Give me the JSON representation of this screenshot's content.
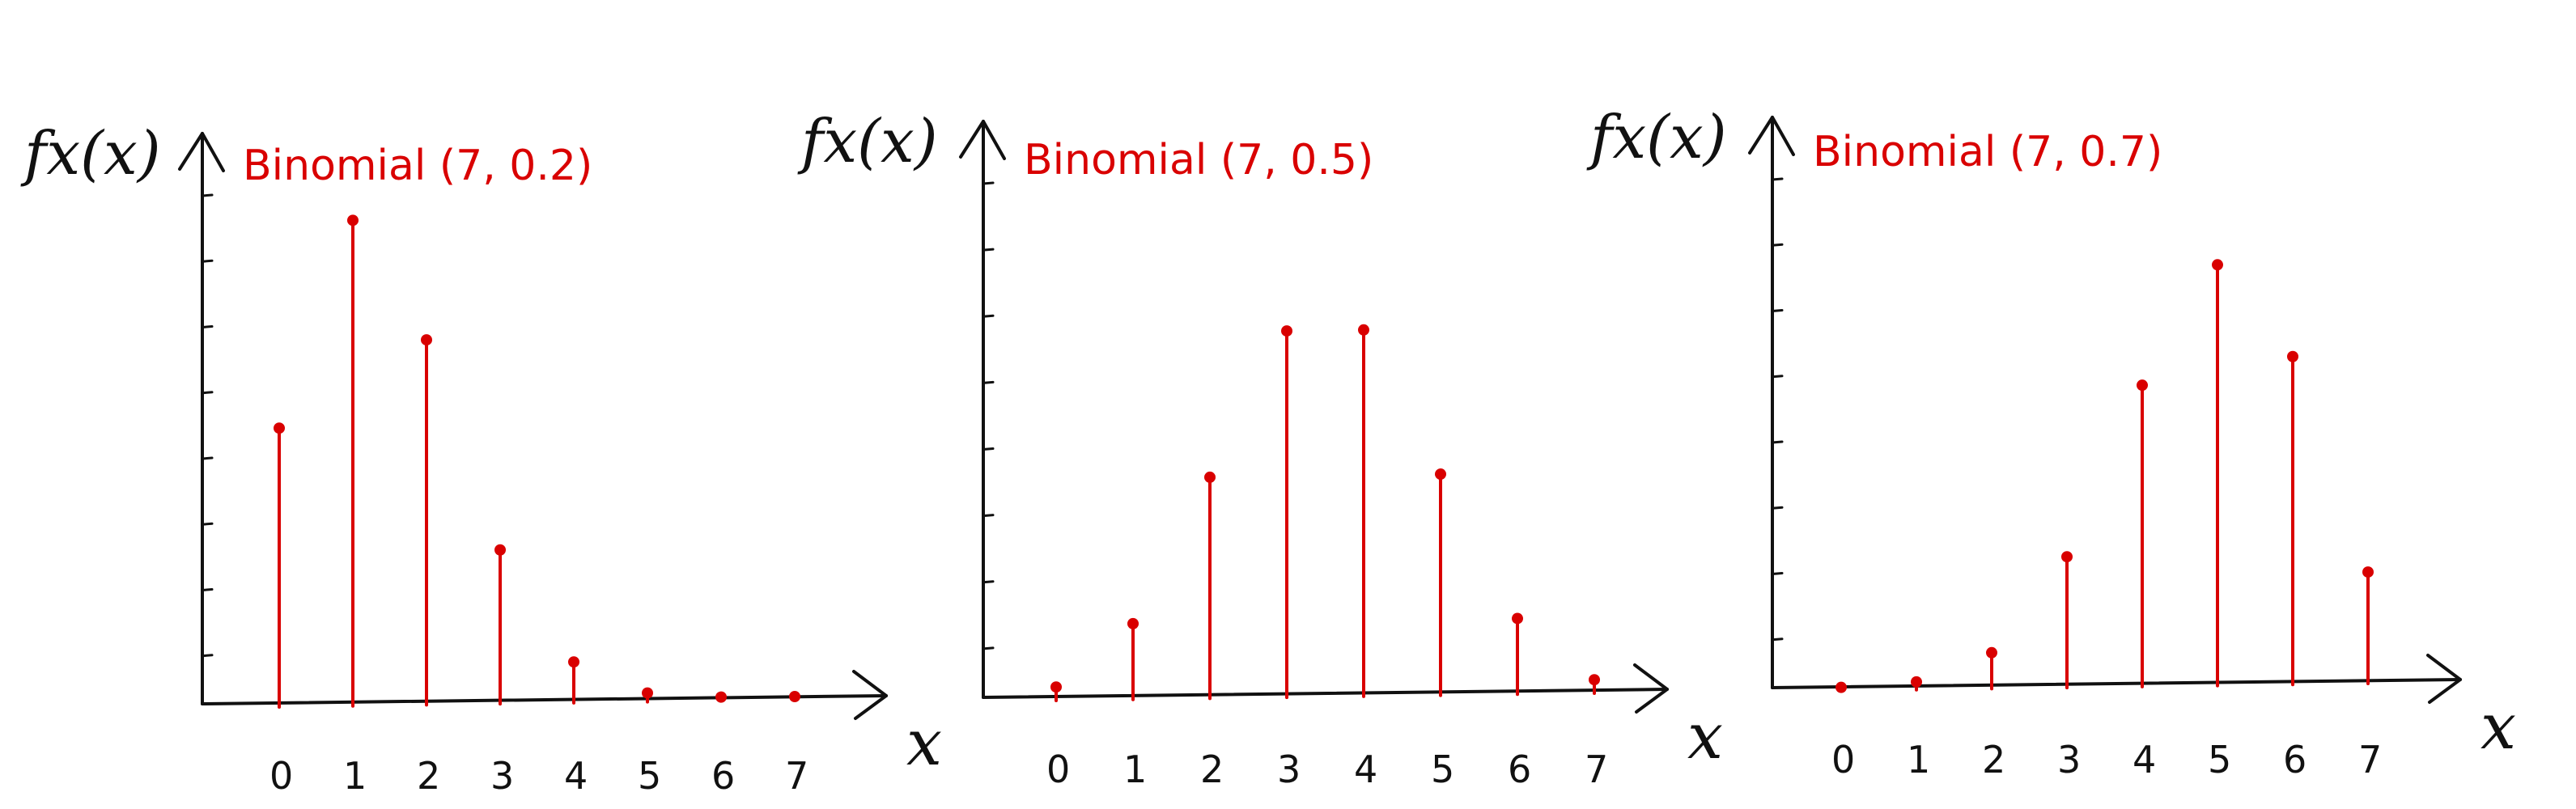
{
  "colors": {
    "stem": "#d90000",
    "axis": "#111111",
    "title": "#d90000"
  },
  "chart_data": [
    {
      "type": "stem",
      "title": "Binomial (7, 0.2)",
      "ylabel": "fx(x)",
      "xlabel": "x",
      "x": [
        0,
        1,
        2,
        3,
        4,
        5,
        6,
        7
      ],
      "x_tick_labels": [
        "0",
        "1",
        "2",
        "3",
        "4",
        "5",
        "6",
        "7"
      ],
      "values": [
        0.2097,
        0.367,
        0.2753,
        0.1147,
        0.0287,
        0.0043,
        0.0004,
        0.0
      ],
      "ylim": [
        0,
        0.4
      ],
      "y_tick_count": 8,
      "grid": false
    },
    {
      "type": "stem",
      "title": "Binomial (7, 0.5)",
      "ylabel": "fx(x)",
      "xlabel": "x",
      "x": [
        0,
        1,
        2,
        3,
        4,
        5,
        6,
        7
      ],
      "x_tick_labels": [
        "0",
        "1",
        "2",
        "3",
        "4",
        "5",
        "6",
        "7"
      ],
      "values": [
        0.0078,
        0.0547,
        0.1641,
        0.2734,
        0.2734,
        0.1641,
        0.0547,
        0.0078
      ],
      "ylim": [
        0,
        0.4
      ],
      "y_tick_count": 8,
      "grid": false
    },
    {
      "type": "stem",
      "title": "Binomial (7, 0.7)",
      "ylabel": "fx(x)",
      "xlabel": "x",
      "x": [
        0,
        1,
        2,
        3,
        4,
        5,
        6,
        7
      ],
      "x_tick_labels": [
        "0",
        "1",
        "2",
        "3",
        "4",
        "5",
        "6",
        "7"
      ],
      "values": [
        0.0002,
        0.0036,
        0.025,
        0.0972,
        0.2269,
        0.3177,
        0.2471,
        0.0824
      ],
      "ylim": [
        0,
        0.4
      ],
      "y_tick_count": 8,
      "grid": false
    }
  ]
}
